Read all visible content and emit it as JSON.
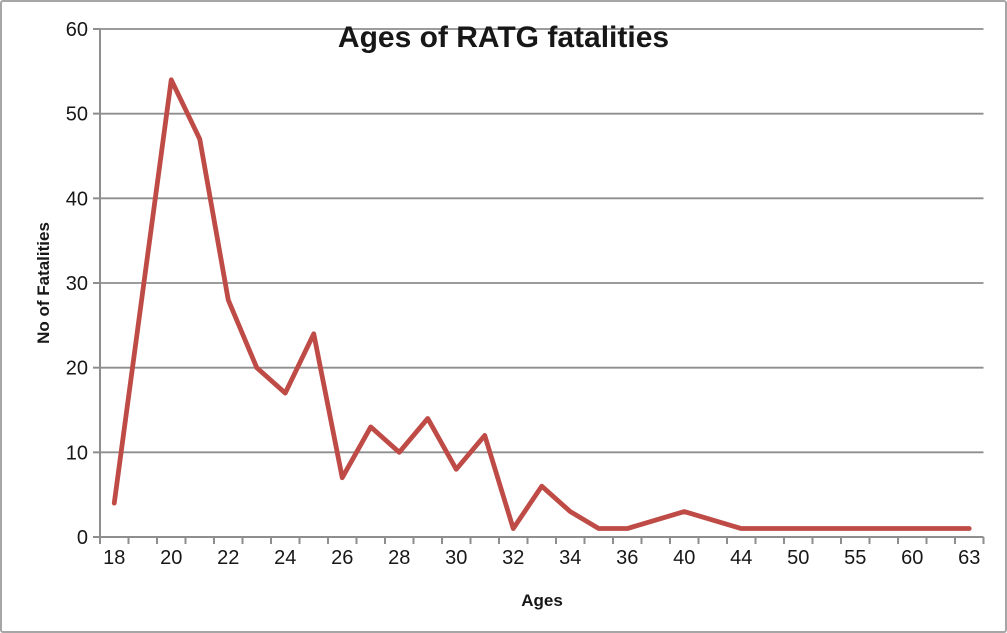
{
  "chart_data": {
    "type": "line",
    "title": "Ages of RATG fatalities",
    "xlabel": "Ages",
    "ylabel": "No of Fatalities",
    "categories": [
      "18",
      "",
      "20",
      "",
      "22",
      "",
      "24",
      "",
      "26",
      "",
      "28",
      "",
      "30",
      "",
      "32",
      "",
      "34",
      "",
      "36",
      "",
      "40",
      "",
      "44",
      "",
      "50",
      "",
      "55",
      "",
      "60",
      "",
      "63"
    ],
    "values": [
      4,
      29,
      54,
      47,
      28,
      20,
      17,
      24,
      7,
      13,
      10,
      14,
      8,
      12,
      1,
      6,
      3,
      1,
      1,
      2,
      3,
      2,
      1,
      1,
      1,
      1,
      1,
      1,
      1,
      1,
      1
    ],
    "y_ticks": [
      0,
      10,
      20,
      30,
      40,
      50,
      60
    ],
    "ylim": [
      0,
      60
    ],
    "grid": "horizontal",
    "legend_position": "none",
    "line_color": "#bf4b47",
    "axis_color": "#8e8e8e",
    "gridline_color": "#8e8e8e",
    "text_color": "#171717",
    "background": "#ffffff",
    "border_color": "#a6a6a6"
  }
}
